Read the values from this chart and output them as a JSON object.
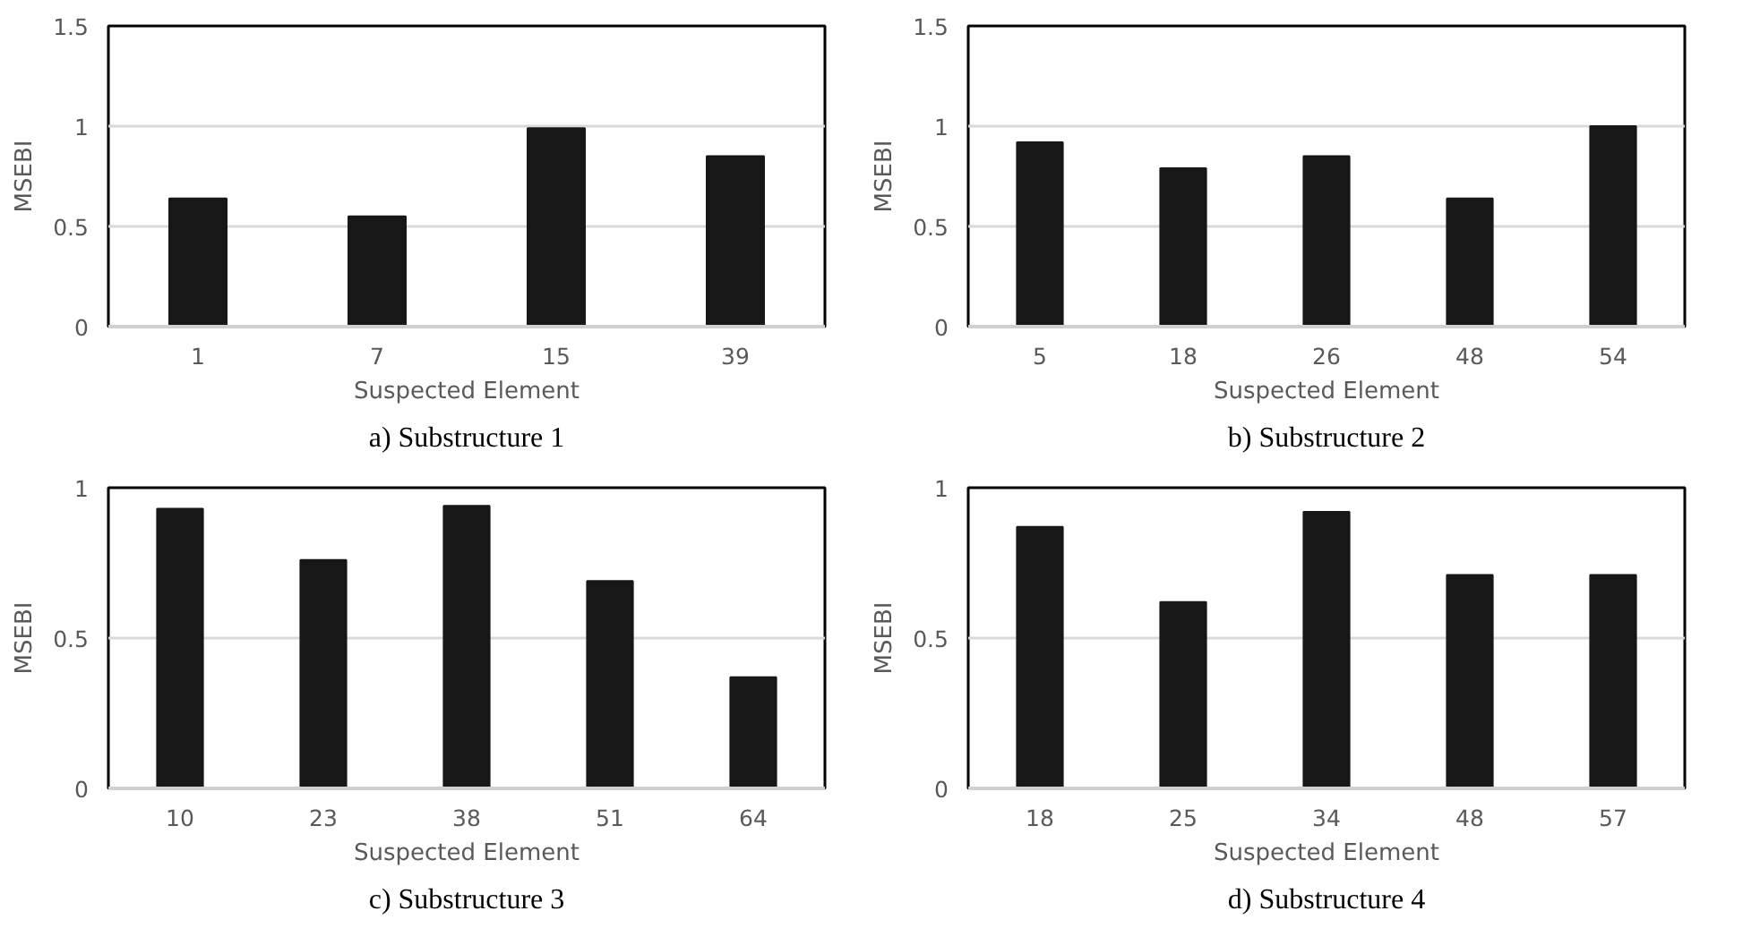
{
  "chart_data": [
    {
      "type": "bar",
      "title": "a) Substructure 1",
      "xlabel": "Suspected Element",
      "ylabel": "MSEBI",
      "categories": [
        "1",
        "7",
        "15",
        "39"
      ],
      "values": [
        0.64,
        0.55,
        0.99,
        0.85
      ],
      "color": "#171717",
      "ylim": [
        0,
        1.5
      ],
      "yticks": [
        0,
        0.5,
        1,
        1.5
      ],
      "grid": "y"
    },
    {
      "type": "bar",
      "title": "b) Substructure 2",
      "xlabel": "Suspected Element",
      "ylabel": "MSEBI",
      "categories": [
        "5",
        "18",
        "26",
        "48",
        "54"
      ],
      "values": [
        0.92,
        0.79,
        0.85,
        0.64,
        1.0
      ],
      "color": "#171717",
      "ylim": [
        0,
        1.5
      ],
      "yticks": [
        0,
        0.5,
        1,
        1.5
      ],
      "grid": "y"
    },
    {
      "type": "bar",
      "title": "c) Substructure 3",
      "xlabel": "Suspected Element",
      "ylabel": "MSEBI",
      "categories": [
        "10",
        "23",
        "38",
        "51",
        "64"
      ],
      "values": [
        0.93,
        0.76,
        0.94,
        0.69,
        0.37
      ],
      "color": "#171717",
      "ylim": [
        0,
        1
      ],
      "yticks": [
        0,
        0.5,
        1
      ],
      "grid": "y"
    },
    {
      "type": "bar",
      "title": "d) Substructure 4",
      "xlabel": "Suspected Element",
      "ylabel": "MSEBI",
      "categories": [
        "18",
        "25",
        "34",
        "48",
        "57"
      ],
      "values": [
        0.87,
        0.62,
        0.92,
        0.71,
        0.71
      ],
      "color": "#171717",
      "ylim": [
        0,
        1
      ],
      "yticks": [
        0,
        0.5,
        1
      ],
      "grid": "y"
    }
  ]
}
